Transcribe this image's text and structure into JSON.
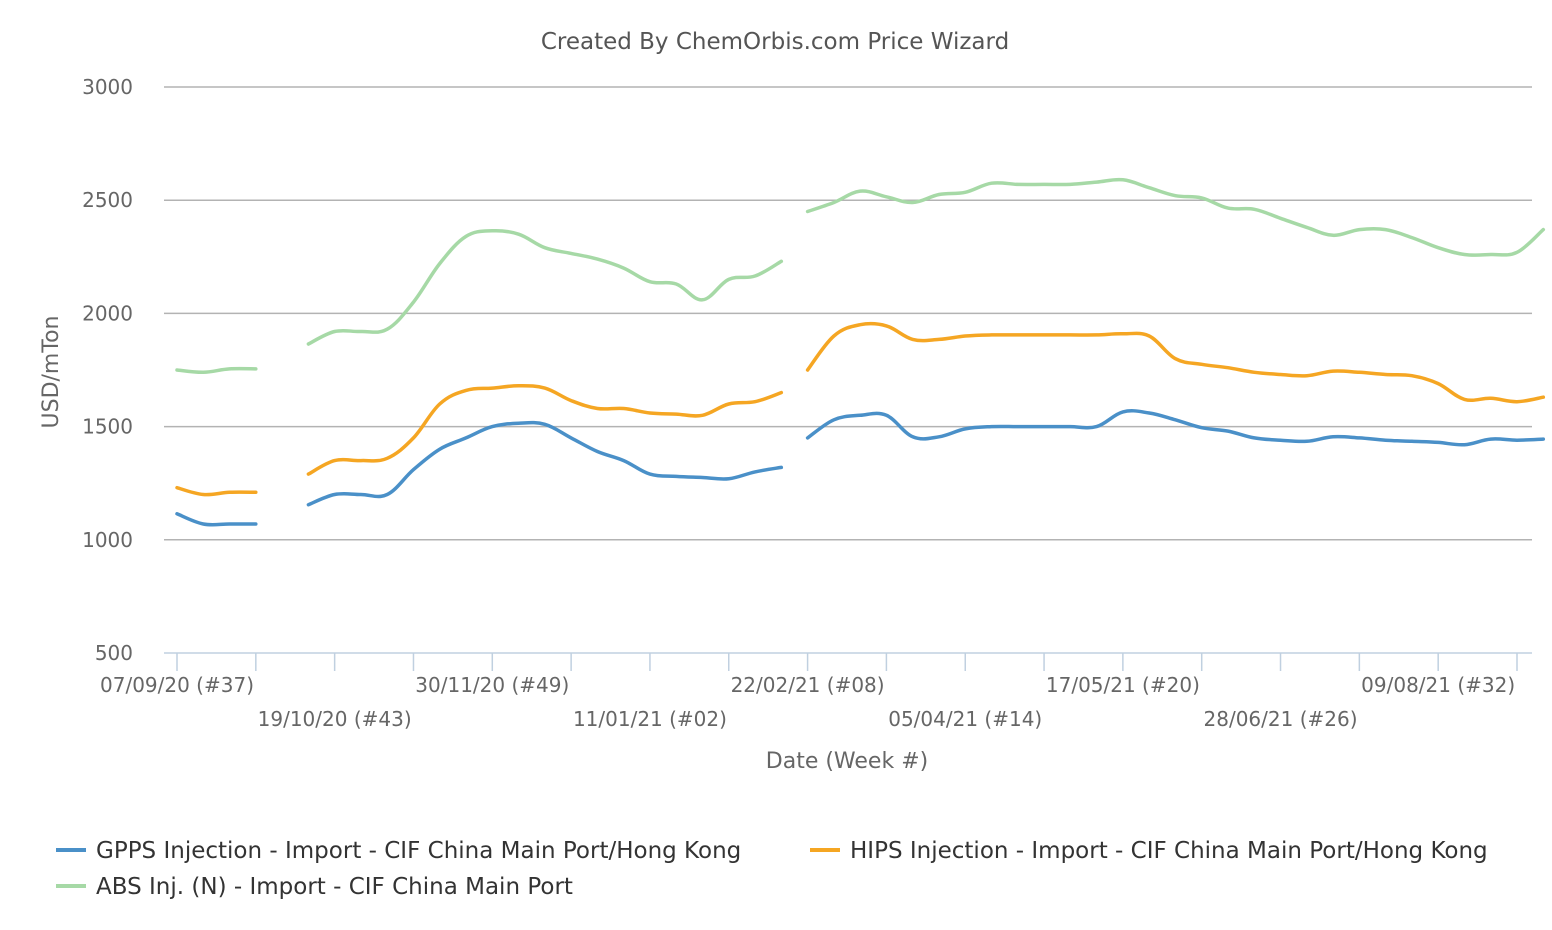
{
  "chart_data": {
    "type": "line",
    "title": "Created By ChemOrbis.com Price Wizard",
    "xlabel": "Date (Week #)",
    "ylabel": "USD/mTon",
    "ylim": [
      500,
      3000
    ],
    "yticks": [
      500,
      1000,
      1500,
      2000,
      2500,
      3000
    ],
    "xlim": [
      "2020-09-07",
      "2021-08-30"
    ],
    "grid": true,
    "legend_position": "bottom",
    "x_tick_dates": [
      "2020-09-07",
      "2020-10-19",
      "2020-11-30",
      "2021-01-11",
      "2021-02-22",
      "2021-04-05",
      "2021-05-17",
      "2021-06-28",
      "2021-08-09"
    ],
    "x_tick_labels": [
      "07/09/20 (#37)",
      "19/10/20 (#43)",
      "30/11/20 (#49)",
      "11/01/21 (#02)",
      "22/02/21 (#08)",
      "05/04/21 (#14)",
      "17/05/21 (#20)",
      "28/06/21 (#26)",
      "09/08/21 (#32)"
    ],
    "series": [
      {
        "name": "GPPS Injection - Import - CIF China Main Port/Hong Kong",
        "color": "#4a90c8",
        "segments": [
          [
            [
              "2020-09-07",
              1115
            ],
            [
              "2020-09-14",
              1070
            ],
            [
              "2020-09-21",
              1070
            ],
            [
              "2020-09-28",
              1070
            ]
          ],
          [
            [
              "2020-10-12",
              1155
            ],
            [
              "2020-10-19",
              1200
            ],
            [
              "2020-10-26",
              1200
            ],
            [
              "2020-11-02",
              1200
            ],
            [
              "2020-11-09",
              1310
            ],
            [
              "2020-11-16",
              1400
            ],
            [
              "2020-11-23",
              1450
            ],
            [
              "2020-11-30",
              1500
            ],
            [
              "2020-12-07",
              1515
            ],
            [
              "2020-12-14",
              1510
            ],
            [
              "2020-12-21",
              1450
            ],
            [
              "2020-12-28",
              1390
            ],
            [
              "2021-01-04",
              1350
            ],
            [
              "2021-01-11",
              1290
            ],
            [
              "2021-01-18",
              1280
            ],
            [
              "2021-01-25",
              1275
            ],
            [
              "2021-02-01",
              1270
            ],
            [
              "2021-02-08",
              1300
            ],
            [
              "2021-02-15",
              1320
            ]
          ],
          [
            [
              "2021-02-22",
              1450
            ],
            [
              "2021-03-01",
              1530
            ],
            [
              "2021-03-08",
              1550
            ],
            [
              "2021-03-15",
              1550
            ],
            [
              "2021-03-22",
              1455
            ],
            [
              "2021-03-29",
              1455
            ],
            [
              "2021-04-05",
              1490
            ],
            [
              "2021-04-12",
              1500
            ],
            [
              "2021-04-19",
              1500
            ],
            [
              "2021-04-26",
              1500
            ],
            [
              "2021-05-03",
              1500
            ],
            [
              "2021-05-10",
              1500
            ],
            [
              "2021-05-17",
              1565
            ],
            [
              "2021-05-24",
              1560
            ],
            [
              "2021-05-31",
              1530
            ],
            [
              "2021-06-07",
              1495
            ],
            [
              "2021-06-14",
              1480
            ],
            [
              "2021-06-21",
              1450
            ],
            [
              "2021-06-28",
              1440
            ],
            [
              "2021-07-05",
              1435
            ],
            [
              "2021-07-12",
              1455
            ],
            [
              "2021-07-19",
              1450
            ],
            [
              "2021-07-26",
              1440
            ],
            [
              "2021-08-02",
              1435
            ],
            [
              "2021-08-09",
              1430
            ],
            [
              "2021-08-16",
              1420
            ],
            [
              "2021-08-23",
              1445
            ],
            [
              "2021-08-30",
              1440
            ],
            [
              "2021-09-06",
              1445
            ]
          ]
        ]
      },
      {
        "name": "HIPS Injection - Import - CIF China Main Port/Hong Kong",
        "color": "#f5a623",
        "segments": [
          [
            [
              "2020-09-07",
              1230
            ],
            [
              "2020-09-14",
              1200
            ],
            [
              "2020-09-21",
              1210
            ],
            [
              "2020-09-28",
              1210
            ]
          ],
          [
            [
              "2020-10-12",
              1290
            ],
            [
              "2020-10-19",
              1350
            ],
            [
              "2020-10-26",
              1350
            ],
            [
              "2020-11-02",
              1360
            ],
            [
              "2020-11-09",
              1450
            ],
            [
              "2020-11-16",
              1600
            ],
            [
              "2020-11-23",
              1660
            ],
            [
              "2020-11-30",
              1670
            ],
            [
              "2020-12-07",
              1680
            ],
            [
              "2020-12-14",
              1670
            ],
            [
              "2020-12-21",
              1615
            ],
            [
              "2020-12-28",
              1580
            ],
            [
              "2021-01-04",
              1580
            ],
            [
              "2021-01-11",
              1560
            ],
            [
              "2021-01-18",
              1555
            ],
            [
              "2021-01-25",
              1550
            ],
            [
              "2021-02-01",
              1600
            ],
            [
              "2021-02-08",
              1610
            ],
            [
              "2021-02-15",
              1650
            ]
          ],
          [
            [
              "2021-02-22",
              1750
            ],
            [
              "2021-03-01",
              1900
            ],
            [
              "2021-03-08",
              1950
            ],
            [
              "2021-03-15",
              1945
            ],
            [
              "2021-03-22",
              1885
            ],
            [
              "2021-03-29",
              1885
            ],
            [
              "2021-04-05",
              1900
            ],
            [
              "2021-04-12",
              1905
            ],
            [
              "2021-04-19",
              1905
            ],
            [
              "2021-04-26",
              1905
            ],
            [
              "2021-05-03",
              1905
            ],
            [
              "2021-05-10",
              1905
            ],
            [
              "2021-05-17",
              1910
            ],
            [
              "2021-05-24",
              1900
            ],
            [
              "2021-05-31",
              1800
            ],
            [
              "2021-06-07",
              1775
            ],
            [
              "2021-06-14",
              1760
            ],
            [
              "2021-06-21",
              1740
            ],
            [
              "2021-06-28",
              1730
            ],
            [
              "2021-07-05",
              1725
            ],
            [
              "2021-07-12",
              1745
            ],
            [
              "2021-07-19",
              1740
            ],
            [
              "2021-07-26",
              1730
            ],
            [
              "2021-08-02",
              1725
            ],
            [
              "2021-08-09",
              1690
            ],
            [
              "2021-08-16",
              1620
            ],
            [
              "2021-08-23",
              1625
            ],
            [
              "2021-08-30",
              1610
            ],
            [
              "2021-09-06",
              1630
            ]
          ]
        ]
      },
      {
        "name": "ABS Inj. (N) - Import - CIF China Main Port",
        "color": "#a6d9a6",
        "segments": [
          [
            [
              "2020-09-07",
              1750
            ],
            [
              "2020-09-14",
              1740
            ],
            [
              "2020-09-21",
              1755
            ],
            [
              "2020-09-28",
              1755
            ]
          ],
          [
            [
              "2020-10-12",
              1865
            ],
            [
              "2020-10-19",
              1920
            ],
            [
              "2020-10-26",
              1920
            ],
            [
              "2020-11-02",
              1930
            ],
            [
              "2020-11-09",
              2050
            ],
            [
              "2020-11-16",
              2220
            ],
            [
              "2020-11-23",
              2340
            ],
            [
              "2020-11-30",
              2365
            ],
            [
              "2020-12-07",
              2350
            ],
            [
              "2020-12-14",
              2290
            ],
            [
              "2020-12-21",
              2265
            ],
            [
              "2020-12-28",
              2240
            ],
            [
              "2021-01-04",
              2200
            ],
            [
              "2021-01-11",
              2140
            ],
            [
              "2021-01-18",
              2130
            ],
            [
              "2021-01-25",
              2060
            ],
            [
              "2021-02-01",
              2150
            ],
            [
              "2021-02-08",
              2165
            ],
            [
              "2021-02-15",
              2230
            ]
          ],
          [
            [
              "2021-02-22",
              2450
            ],
            [
              "2021-03-01",
              2490
            ],
            [
              "2021-03-08",
              2540
            ],
            [
              "2021-03-15",
              2515
            ],
            [
              "2021-03-22",
              2490
            ],
            [
              "2021-03-29",
              2525
            ],
            [
              "2021-04-05",
              2535
            ],
            [
              "2021-04-12",
              2575
            ],
            [
              "2021-04-19",
              2570
            ],
            [
              "2021-04-26",
              2570
            ],
            [
              "2021-05-03",
              2570
            ],
            [
              "2021-05-10",
              2580
            ],
            [
              "2021-05-17",
              2590
            ],
            [
              "2021-05-24",
              2555
            ],
            [
              "2021-05-31",
              2520
            ],
            [
              "2021-06-07",
              2510
            ],
            [
              "2021-06-14",
              2465
            ],
            [
              "2021-06-21",
              2460
            ],
            [
              "2021-06-28",
              2420
            ],
            [
              "2021-07-05",
              2380
            ],
            [
              "2021-07-12",
              2345
            ],
            [
              "2021-07-19",
              2370
            ],
            [
              "2021-07-26",
              2370
            ],
            [
              "2021-08-02",
              2335
            ],
            [
              "2021-08-09",
              2290
            ],
            [
              "2021-08-16",
              2260
            ],
            [
              "2021-08-23",
              2260
            ],
            [
              "2021-08-30",
              2270
            ],
            [
              "2021-09-06",
              2370
            ]
          ]
        ]
      }
    ]
  }
}
